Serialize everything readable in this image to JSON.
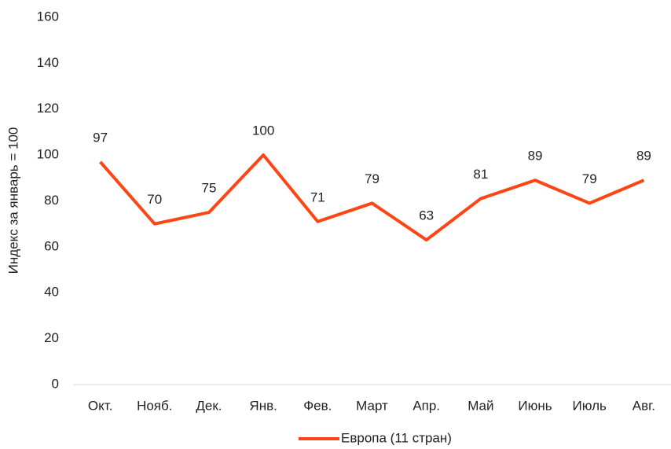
{
  "chart_data": {
    "type": "line",
    "y_label": "Индекс за январь = 100",
    "categories": [
      "Окт.",
      "Нояб.",
      "Дек.",
      "Янв.",
      "Фев.",
      "Март",
      "Апр.",
      "Май",
      "Июнь",
      "Июль",
      "Авг."
    ],
    "series": [
      {
        "name": "Европа (11 стран)",
        "color": "#ff4514",
        "values": [
          97,
          70,
          75,
          100,
          71,
          79,
          63,
          81,
          89,
          79,
          89
        ]
      }
    ],
    "ylim": [
      0,
      160
    ],
    "yticks": [
      0,
      20,
      40,
      60,
      80,
      100,
      120,
      140,
      160
    ],
    "grid": false,
    "data_labels": true,
    "legend": "bottom"
  }
}
